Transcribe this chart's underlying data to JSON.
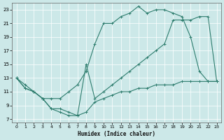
{
  "xlabel": "Humidex (Indice chaleur)",
  "xlim": [
    -0.5,
    23.5
  ],
  "ylim": [
    6.5,
    24.0
  ],
  "xticks": [
    0,
    1,
    2,
    3,
    4,
    5,
    6,
    7,
    8,
    9,
    10,
    11,
    12,
    13,
    14,
    15,
    16,
    17,
    18,
    19,
    20,
    21,
    22,
    23
  ],
  "yticks": [
    7,
    9,
    11,
    13,
    15,
    17,
    19,
    21,
    23
  ],
  "line_color": "#2e7d6e",
  "bg_color": "#cce8e8",
  "grid_color": "#aacccc",
  "line1_x": [
    0,
    1,
    2,
    3,
    4,
    5,
    6,
    7,
    8,
    9,
    10,
    11,
    12,
    13,
    14,
    15,
    16,
    17,
    18,
    19,
    20,
    21,
    22,
    23
  ],
  "line1_y": [
    13,
    12,
    11,
    10,
    10,
    10,
    11,
    12,
    14,
    18,
    21,
    21,
    22,
    22.5,
    23.5,
    22.5,
    23,
    23,
    22.5,
    22,
    19,
    14,
    12.5,
    12.5
  ],
  "line2_x": [
    0,
    1,
    2,
    3,
    4,
    5,
    6,
    7,
    8,
    9,
    10,
    11,
    12,
    13,
    14,
    15,
    16,
    17,
    18,
    19,
    20,
    21,
    22,
    23
  ],
  "line2_y": [
    13,
    11.5,
    11,
    10,
    8.5,
    8,
    7.5,
    7.5,
    8,
    9.5,
    10,
    10.5,
    11,
    11,
    11.5,
    11.5,
    12,
    12,
    12,
    12.5,
    12.5,
    12.5,
    12.5,
    12.5
  ],
  "line3_x": [
    0,
    1,
    2,
    3,
    4,
    5,
    6,
    7,
    8,
    9,
    10,
    11,
    12,
    13,
    14,
    15,
    16,
    17,
    18,
    19,
    20,
    21,
    22,
    23
  ],
  "line3_y": [
    13,
    11.5,
    11,
    10,
    8.5,
    8.5,
    8,
    7.5,
    15,
    10,
    11,
    12,
    13,
    14,
    15,
    16,
    17,
    18,
    21.5,
    21.5,
    21.5,
    22,
    22,
    12.5
  ]
}
